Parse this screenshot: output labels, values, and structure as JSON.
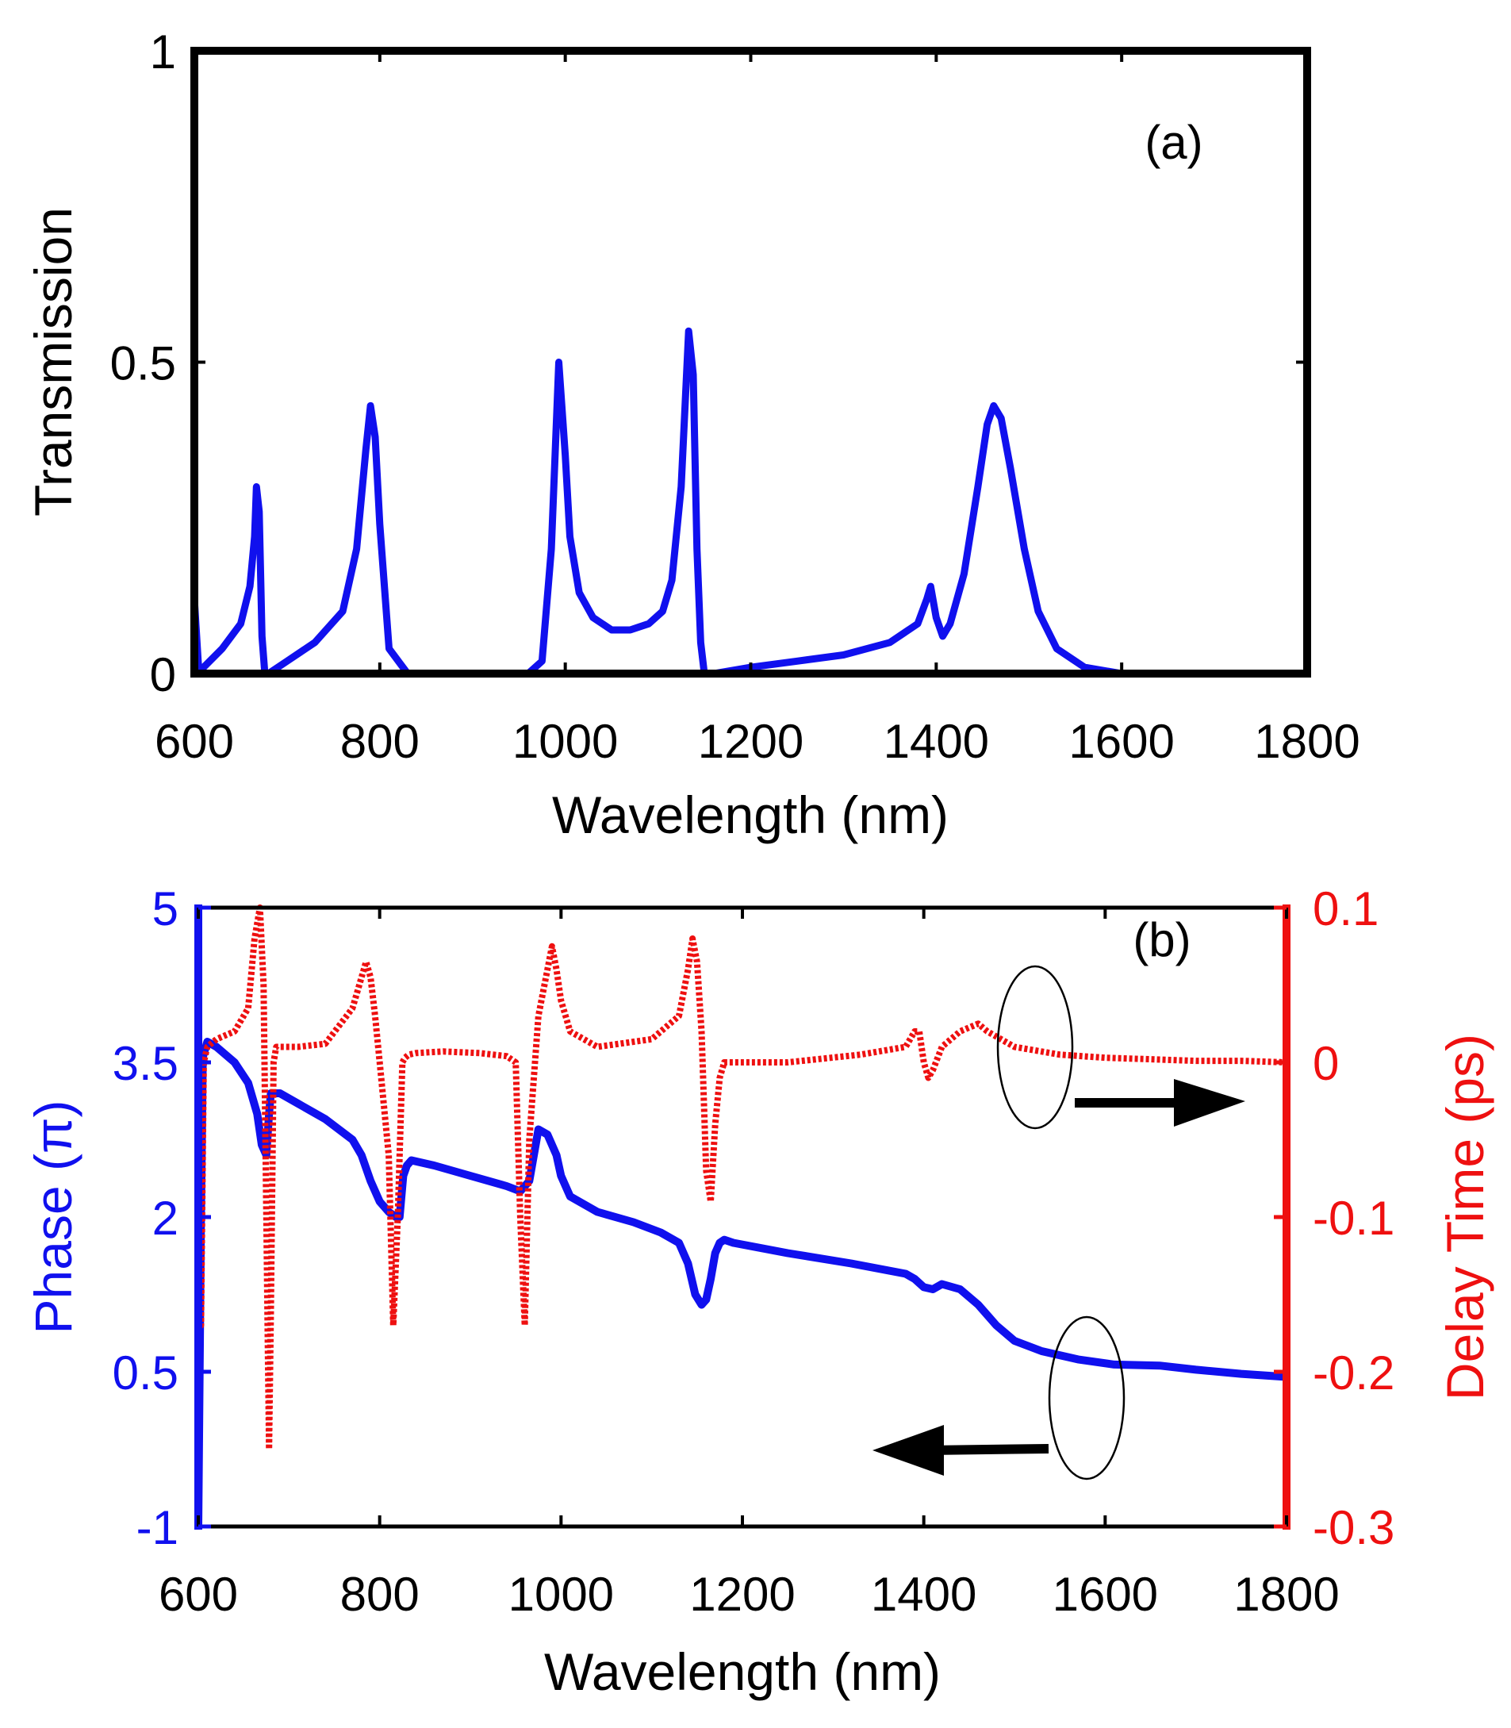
{
  "chart_data": [
    {
      "type": "line",
      "panel_label": "(a)",
      "xlabel": "Wavelength (nm)",
      "ylabel": "Transmission",
      "xlim": [
        600,
        1800
      ],
      "ylim": [
        0,
        1
      ],
      "x_ticks": [
        "600",
        "800",
        "1000",
        "1200",
        "1400",
        "1600",
        "1800"
      ],
      "y_ticks": [
        "0",
        "0.5",
        "1"
      ],
      "grid": false,
      "color": "#1010ee",
      "series": [
        {
          "x": [
            600,
            605,
            610,
            630,
            650,
            660,
            665,
            667,
            670,
            673,
            676,
            680,
            700,
            730,
            760,
            775,
            785,
            790,
            795,
            800,
            810,
            830,
            850,
            900,
            960,
            975,
            985,
            993,
            1000,
            1005,
            1015,
            1030,
            1050,
            1070,
            1090,
            1105,
            1115,
            1125,
            1133,
            1138,
            1142,
            1146,
            1150,
            1160,
            1200,
            1250,
            1300,
            1350,
            1380,
            1390,
            1394,
            1400,
            1407,
            1415,
            1430,
            1445,
            1455,
            1462,
            1470,
            1480,
            1495,
            1510,
            1530,
            1560,
            1600,
            1650,
            1700,
            1740
          ],
          "y": [
            0.12,
            0.0,
            0.01,
            0.04,
            0.08,
            0.14,
            0.22,
            0.3,
            0.26,
            0.06,
            0.0,
            0.0,
            0.02,
            0.05,
            0.1,
            0.2,
            0.36,
            0.43,
            0.38,
            0.24,
            0.04,
            0.0,
            0.0,
            0.0,
            0.0,
            0.02,
            0.2,
            0.5,
            0.35,
            0.22,
            0.13,
            0.09,
            0.07,
            0.07,
            0.08,
            0.1,
            0.15,
            0.3,
            0.55,
            0.48,
            0.2,
            0.05,
            0.0,
            0.0,
            0.01,
            0.02,
            0.03,
            0.05,
            0.08,
            0.12,
            0.14,
            0.09,
            0.06,
            0.08,
            0.16,
            0.3,
            0.4,
            0.43,
            0.41,
            0.33,
            0.2,
            0.1,
            0.04,
            0.01,
            0.0,
            0.0,
            0.0,
            0.0
          ]
        }
      ]
    },
    {
      "type": "line",
      "panel_label": "(b)",
      "xlabel": "Wavelength (nm)",
      "ylabel_left": "Phase (π)",
      "ylabel_right": "Delay Time (ps)",
      "xlim": [
        600,
        1800
      ],
      "ylim_left": [
        -1,
        5
      ],
      "ylim_right": [
        -0.3,
        0.1
      ],
      "x_ticks": [
        "600",
        "800",
        "1000",
        "1200",
        "1400",
        "1600",
        "1800"
      ],
      "y_ticks_left": [
        "-1",
        "0.5",
        "2",
        "3.5",
        "5"
      ],
      "y_ticks_right": [
        "-0.3",
        "-0.2",
        "-0.1",
        "0",
        "0.1"
      ],
      "grid": false,
      "left_color": "#1010ee",
      "right_color": "#ee1010",
      "series": [
        {
          "axis": "left",
          "style": "solid",
          "x": [
            600,
            603,
            605,
            610,
            620,
            640,
            655,
            665,
            670,
            675,
            678,
            680,
            690,
            710,
            740,
            770,
            780,
            790,
            800,
            810,
            818,
            822,
            826,
            830,
            835,
            860,
            900,
            940,
            955,
            965,
            975,
            985,
            995,
            1000,
            1010,
            1040,
            1080,
            1110,
            1130,
            1140,
            1148,
            1155,
            1160,
            1165,
            1170,
            1175,
            1180,
            1190,
            1250,
            1320,
            1380,
            1390,
            1400,
            1410,
            1420,
            1440,
            1460,
            1480,
            1500,
            1530,
            1570,
            1610,
            1660,
            1700,
            1750,
            1800
          ],
          "y": [
            -1,
            2.0,
            3.55,
            3.7,
            3.65,
            3.5,
            3.3,
            3.0,
            2.7,
            2.6,
            3.0,
            3.2,
            3.2,
            3.1,
            2.95,
            2.75,
            2.6,
            2.35,
            2.15,
            2.05,
            2.0,
            2.0,
            2.4,
            2.5,
            2.55,
            2.5,
            2.4,
            2.3,
            2.25,
            2.35,
            2.85,
            2.8,
            2.6,
            2.4,
            2.2,
            2.05,
            1.95,
            1.85,
            1.75,
            1.55,
            1.25,
            1.15,
            1.2,
            1.4,
            1.65,
            1.75,
            1.78,
            1.75,
            1.65,
            1.55,
            1.45,
            1.4,
            1.32,
            1.3,
            1.35,
            1.3,
            1.15,
            0.95,
            0.8,
            0.7,
            0.62,
            0.57,
            0.56,
            0.52,
            0.48,
            0.45
          ]
        },
        {
          "axis": "right",
          "style": "dashed",
          "x": [
            600,
            603,
            606,
            610,
            620,
            640,
            655,
            662,
            668,
            672,
            675,
            678,
            680,
            683,
            686,
            690,
            710,
            740,
            770,
            780,
            785,
            790,
            795,
            800,
            810,
            815,
            820,
            825,
            828,
            832,
            840,
            870,
            910,
            940,
            950,
            955,
            960,
            965,
            975,
            985,
            990,
            995,
            1000,
            1010,
            1040,
            1100,
            1130,
            1140,
            1145,
            1150,
            1155,
            1160,
            1165,
            1170,
            1175,
            1180,
            1190,
            1250,
            1330,
            1380,
            1390,
            1395,
            1400,
            1405,
            1410,
            1420,
            1440,
            1460,
            1470,
            1500,
            1550,
            1600,
            1650,
            1700,
            1750,
            1800
          ],
          "y": [
            0.1,
            -0.17,
            0.0,
            0.01,
            0.015,
            0.02,
            0.035,
            0.08,
            0.1,
            0.05,
            -0.1,
            -0.25,
            -0.16,
            0.0,
            0.01,
            0.01,
            0.01,
            0.012,
            0.035,
            0.055,
            0.065,
            0.055,
            0.03,
            0.0,
            -0.06,
            -0.17,
            -0.1,
            0.0,
            0.003,
            0.005,
            0.006,
            0.007,
            0.006,
            0.004,
            0.0,
            -0.1,
            -0.17,
            -0.05,
            0.03,
            0.06,
            0.075,
            0.06,
            0.04,
            0.02,
            0.01,
            0.015,
            0.03,
            0.06,
            0.08,
            0.065,
            0.02,
            -0.07,
            -0.09,
            -0.04,
            -0.01,
            0.0,
            0.0,
            0.0,
            0.005,
            0.01,
            0.02,
            0.02,
            0.0,
            -0.01,
            -0.005,
            0.01,
            0.02,
            0.025,
            0.02,
            0.01,
            0.005,
            0.003,
            0.002,
            0.001,
            0.001,
            0.0
          ]
        }
      ],
      "annotations": [
        {
          "kind": "ellipse-with-arrow",
          "target_axis": "right",
          "arrow_direction": "right"
        },
        {
          "kind": "ellipse-with-arrow",
          "target_axis": "left",
          "arrow_direction": "left"
        }
      ]
    }
  ]
}
